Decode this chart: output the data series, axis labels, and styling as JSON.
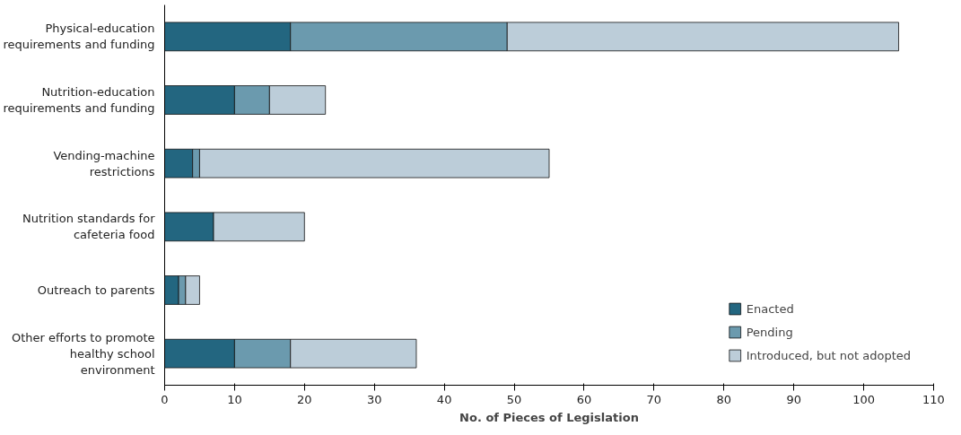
{
  "chart_data": {
    "type": "bar",
    "orientation": "horizontal",
    "stacked": true,
    "xlabel": "No. of Pieces of Legislation",
    "categories": [
      "Physical-education requirements and funding",
      "Nutrition-education requirements and funding",
      "Vending-machine restrictions",
      "Nutrition standards for cafeteria food",
      "Outreach to parents",
      "Other efforts to promote healthy school environment"
    ],
    "series": [
      {
        "name": "Enacted",
        "color": "#236680",
        "values": [
          18,
          10,
          4,
          7,
          2,
          10
        ]
      },
      {
        "name": "Pending",
        "color": "#6b9aae",
        "values": [
          31,
          5,
          1,
          0,
          1,
          8
        ]
      },
      {
        "name": "Introduced, but not adopted",
        "color": "#bccdd9",
        "values": [
          56,
          8,
          50,
          13,
          2,
          18
        ]
      }
    ],
    "xlim": [
      0,
      110
    ],
    "xticks": [
      0,
      10,
      20,
      30,
      40,
      50,
      60,
      70,
      80,
      90,
      100,
      110
    ],
    "grid": false,
    "legend": "bottom right"
  }
}
